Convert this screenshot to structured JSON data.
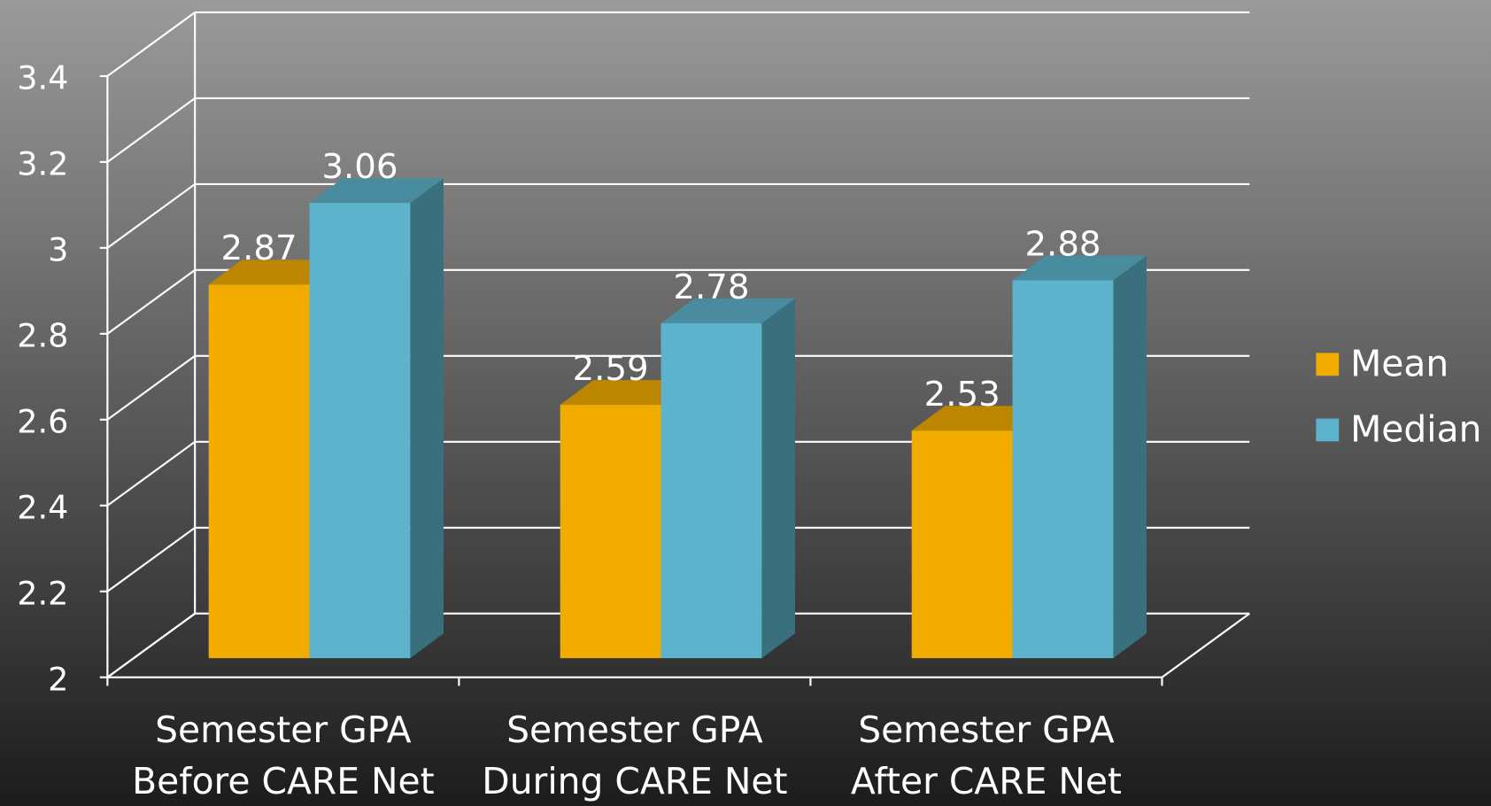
{
  "chart_data": {
    "type": "bar3d",
    "categories": [
      "Semester GPA\nBefore CARE Net",
      "Semester GPA\nDuring CARE Net",
      "Semester GPA\nAfter CARE Net"
    ],
    "series": [
      {
        "name": "Mean",
        "color": "#f2ac00",
        "values": [
          2.87,
          2.59,
          2.53
        ]
      },
      {
        "name": "Median",
        "color": "#5eb3cc",
        "values": [
          3.06,
          2.78,
          2.88
        ]
      }
    ],
    "ylim": [
      2,
      3.4
    ],
    "yticks": [
      2,
      2.2,
      2.4,
      2.6,
      2.8,
      3,
      3.2,
      3.4
    ],
    "grid": true,
    "legend": "right"
  }
}
